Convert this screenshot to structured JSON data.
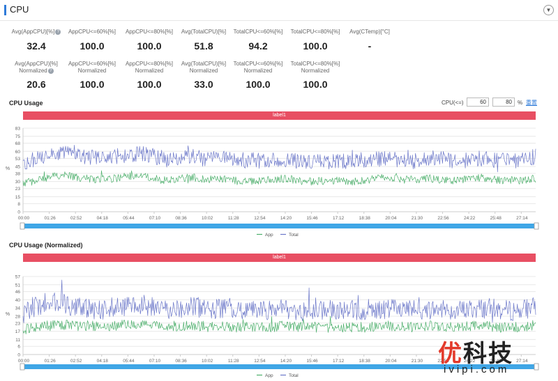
{
  "header": {
    "title": "CPU",
    "collapse_icon": "chevron-down-icon"
  },
  "stats_row1": [
    {
      "label": "Avg(AppCPU)[%]",
      "value": "32.4",
      "help": true
    },
    {
      "label": "AppCPU<=60%[%]",
      "value": "100.0"
    },
    {
      "label": "AppCPU<=80%[%]",
      "value": "100.0"
    },
    {
      "label": "Avg(TotalCPU)[%]",
      "value": "51.8"
    },
    {
      "label": "TotalCPU<=60%[%]",
      "value": "94.2"
    },
    {
      "label": "TotalCPU<=80%[%]",
      "value": "100.0"
    },
    {
      "label": "Avg(CTemp)[°C]",
      "value": "-"
    }
  ],
  "stats_row2": [
    {
      "label": "Avg(AppCPU)[%]",
      "label2": "Normalized",
      "value": "20.6",
      "help": true
    },
    {
      "label": "AppCPU<=60%[%]",
      "label2": "Normalized",
      "value": "100.0"
    },
    {
      "label": "AppCPU<=80%[%]",
      "label2": "Normalized",
      "value": "100.0"
    },
    {
      "label": "Avg(TotalCPU)[%]",
      "label2": "Normalized",
      "value": "33.0"
    },
    {
      "label": "TotalCPU<=60%[%]",
      "label2": "Normalized",
      "value": "100.0"
    },
    {
      "label": "TotalCPU<=80%[%]",
      "label2": "Normalized",
      "value": "100.0"
    }
  ],
  "threshold": {
    "label": "CPU(<=)",
    "v1": "60",
    "v2": "80",
    "unit": "%",
    "reset_label": "重置"
  },
  "watermark": {
    "big1": "优",
    "big2": "科技",
    "small": "ivipi.com"
  },
  "colors": {
    "app": "#4caf6b",
    "total": "#6b77c9",
    "label_bar": "#e84f63",
    "slider": "#3fa6e6",
    "accent": "#2f7bd9"
  },
  "chart_data": [
    {
      "type": "line",
      "title": "CPU Usage",
      "band_label": "label1",
      "ylabel": "%",
      "yticks": [
        0,
        8,
        15,
        23,
        30,
        38,
        45,
        53,
        60,
        68,
        75,
        83
      ],
      "ylim": [
        0,
        83
      ],
      "xticks": [
        "00:00",
        "01:26",
        "02:52",
        "04:18",
        "05:44",
        "07:10",
        "08:36",
        "10:02",
        "11:28",
        "12:54",
        "14:20",
        "15:46",
        "17:12",
        "18:38",
        "20:04",
        "21:30",
        "22:56",
        "24:22",
        "25:48",
        "27:14"
      ],
      "legend": [
        "App",
        "Total"
      ],
      "legend_position": "bottom",
      "series": [
        {
          "name": "App",
          "values": [
            28,
            31,
            34,
            37,
            34,
            33,
            32,
            33,
            35,
            36,
            33,
            31,
            33,
            34,
            32,
            33,
            31,
            30,
            31,
            32,
            33,
            31,
            30,
            31,
            31,
            30,
            31,
            33,
            34,
            32,
            32,
            33,
            31,
            31,
            33,
            34,
            32,
            31,
            31,
            33
          ]
        },
        {
          "name": "Total",
          "values": [
            46,
            53,
            58,
            60,
            55,
            54,
            53,
            55,
            56,
            58,
            55,
            52,
            54,
            55,
            52,
            53,
            51,
            51,
            51,
            52,
            52,
            51,
            50,
            50,
            50,
            51,
            51,
            52,
            53,
            51,
            50,
            53,
            52,
            50,
            52,
            53,
            51,
            50,
            51,
            55
          ]
        }
      ]
    },
    {
      "type": "line",
      "title": "CPU Usage (Normalized)",
      "band_label": "label1",
      "ylabel": "%",
      "yticks": [
        0,
        6,
        11,
        17,
        23,
        28,
        34,
        40,
        46,
        51,
        57
      ],
      "ylim": [
        0,
        57
      ],
      "xticks": [
        "00:00",
        "01:26",
        "02:52",
        "04:18",
        "05:44",
        "07:10",
        "08:36",
        "10:02",
        "11:28",
        "12:54",
        "14:20",
        "15:46",
        "17:12",
        "18:38",
        "20:04",
        "21:30",
        "22:56",
        "24:22",
        "25:48",
        "27:14"
      ],
      "legend": [
        "App",
        "Total"
      ],
      "legend_position": "bottom",
      "series": [
        {
          "name": "App",
          "values": [
            18,
            20,
            21,
            22,
            21,
            21,
            20,
            21,
            22,
            22,
            21,
            20,
            21,
            21,
            20,
            21,
            20,
            20,
            20,
            20,
            21,
            20,
            20,
            20,
            20,
            20,
            20,
            21,
            21,
            20,
            20,
            21,
            20,
            20,
            21,
            21,
            20,
            20,
            20,
            22
          ]
        },
        {
          "name": "Total",
          "values": [
            30,
            36,
            38,
            38,
            35,
            34,
            33,
            35,
            36,
            37,
            35,
            33,
            34,
            35,
            33,
            34,
            32,
            32,
            32,
            33,
            33,
            32,
            32,
            32,
            32,
            32,
            33,
            33,
            34,
            33,
            32,
            33,
            33,
            32,
            33,
            34,
            33,
            32,
            33,
            35
          ]
        }
      ]
    }
  ]
}
